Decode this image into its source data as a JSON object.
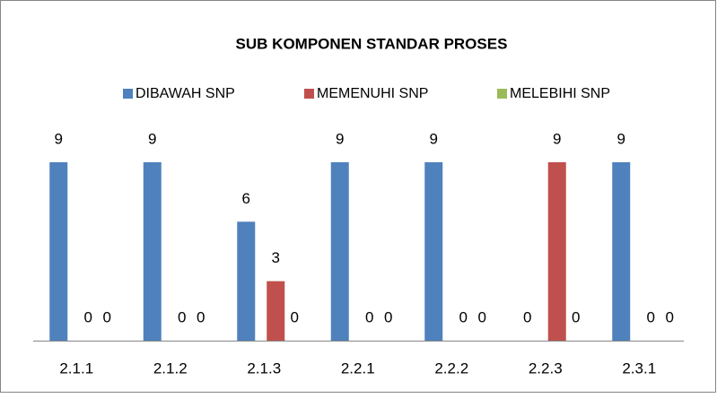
{
  "chart_data": {
    "type": "bar",
    "title": "SUB KOMPONEN STANDAR PROSES",
    "categories": [
      "2.1.1",
      "2.1.2",
      "2.1.3",
      "2.2.1",
      "2.2.2",
      "2.2.3",
      "2.3.1"
    ],
    "series": [
      {
        "name": "DIBAWAH SNP",
        "color": "#4f81bd",
        "values": [
          9,
          9,
          6,
          9,
          9,
          0,
          9
        ]
      },
      {
        "name": "MEMENUHI SNP",
        "color": "#c0504d",
        "values": [
          0,
          0,
          3,
          0,
          0,
          9,
          0
        ]
      },
      {
        "name": "MELEBIHI SNP",
        "color": "#9bbb59",
        "values": [
          0,
          0,
          0,
          0,
          0,
          0,
          0
        ]
      }
    ],
    "legend": "top"
  }
}
